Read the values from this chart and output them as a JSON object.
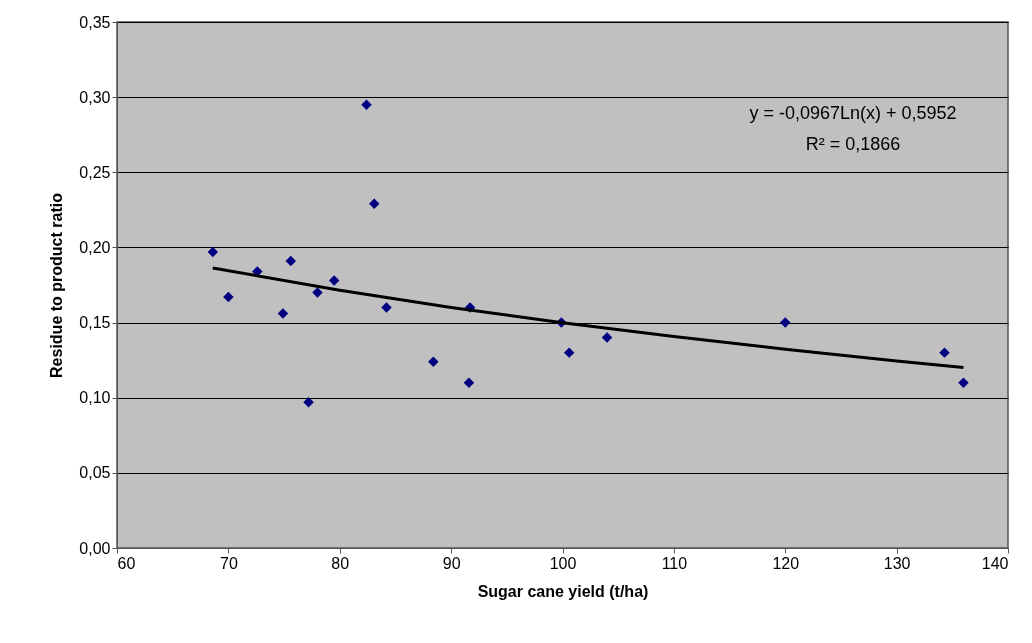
{
  "chart_data": {
    "type": "scatter",
    "xlabel": "Sugar cane yield (t/ha)",
    "ylabel": "Residue to product ratio",
    "xlim": [
      60,
      140
    ],
    "xticks": [
      60,
      70,
      80,
      90,
      100,
      110,
      120,
      130,
      140
    ],
    "ylim": [
      0,
      0.35
    ],
    "yticks": [
      {
        "value": 0,
        "label": "0,00"
      },
      {
        "value": 0.05,
        "label": "0,05"
      },
      {
        "value": 0.1,
        "label": "0,10"
      },
      {
        "value": 0.15,
        "label": "0,15"
      },
      {
        "value": 0.2,
        "label": "0,20"
      },
      {
        "value": 0.25,
        "label": "0,25"
      },
      {
        "value": 0.3,
        "label": "0,30"
      },
      {
        "value": 0.35,
        "label": "0,35"
      }
    ],
    "grid": "y",
    "series": [
      {
        "type": "scatter",
        "marker": "diamond",
        "color": "#000080",
        "x": [
          68.6,
          70,
          72.6,
          74.9,
          75.6,
          77.2,
          78,
          79.5,
          82.4,
          83.1,
          84.2,
          88.4,
          91.6,
          91.7,
          99.9,
          100.6,
          104,
          120,
          134.3,
          136
        ],
        "values": [
          0.197,
          0.167,
          0.184,
          0.156,
          0.191,
          0.097,
          0.17,
          0.178,
          0.295,
          0.229,
          0.16,
          0.124,
          0.11,
          0.16,
          0.15,
          0.13,
          0.14,
          0.15,
          0.13,
          0.11
        ]
      },
      {
        "type": "line",
        "marker": "none",
        "line_style": "solid",
        "color": "#000000",
        "x": [
          68.6,
          80,
          90,
          100,
          110,
          120,
          130,
          136
        ],
        "values": [
          0.1863,
          0.1715,
          0.1601,
          0.1499,
          0.1407,
          0.1323,
          0.1245,
          0.1201
        ]
      }
    ],
    "annotations": [
      "y = -0,0967Ln(x) + 0,5952",
      "R² = 0,1866"
    ]
  }
}
